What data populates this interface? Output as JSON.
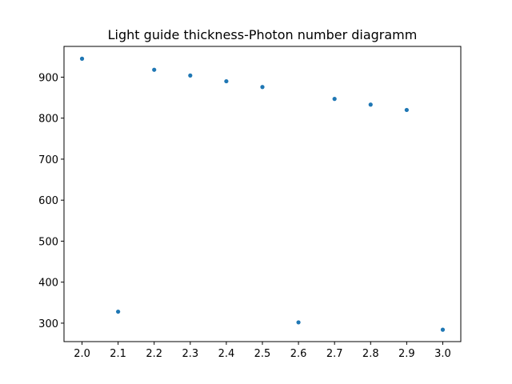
{
  "chart_data": {
    "type": "scatter",
    "title": "Light guide thickness-Photon number diagramm",
    "xlabel": "",
    "ylabel": "",
    "x": [
      2.0,
      2.1,
      2.2,
      2.3,
      2.4,
      2.5,
      2.6,
      2.7,
      2.8,
      2.9,
      3.0
    ],
    "y": [
      945,
      328,
      918,
      904,
      890,
      876,
      302,
      847,
      833,
      820,
      284
    ],
    "xlim": [
      1.95,
      3.05
    ],
    "ylim": [
      255,
      975
    ],
    "xticks": [
      2.0,
      2.1,
      2.2,
      2.3,
      2.4,
      2.5,
      2.6,
      2.7,
      2.8,
      2.9,
      3.0
    ],
    "xtick_labels": [
      "2.0",
      "2.1",
      "2.2",
      "2.3",
      "2.4",
      "2.5",
      "2.6",
      "2.7",
      "2.8",
      "2.9",
      "3.0"
    ],
    "yticks": [
      300,
      400,
      500,
      600,
      700,
      800,
      900
    ],
    "ytick_labels": [
      "300",
      "400",
      "500",
      "600",
      "700",
      "800",
      "900"
    ],
    "series_color": "#1f77b4",
    "grid": false,
    "legend": "none"
  }
}
